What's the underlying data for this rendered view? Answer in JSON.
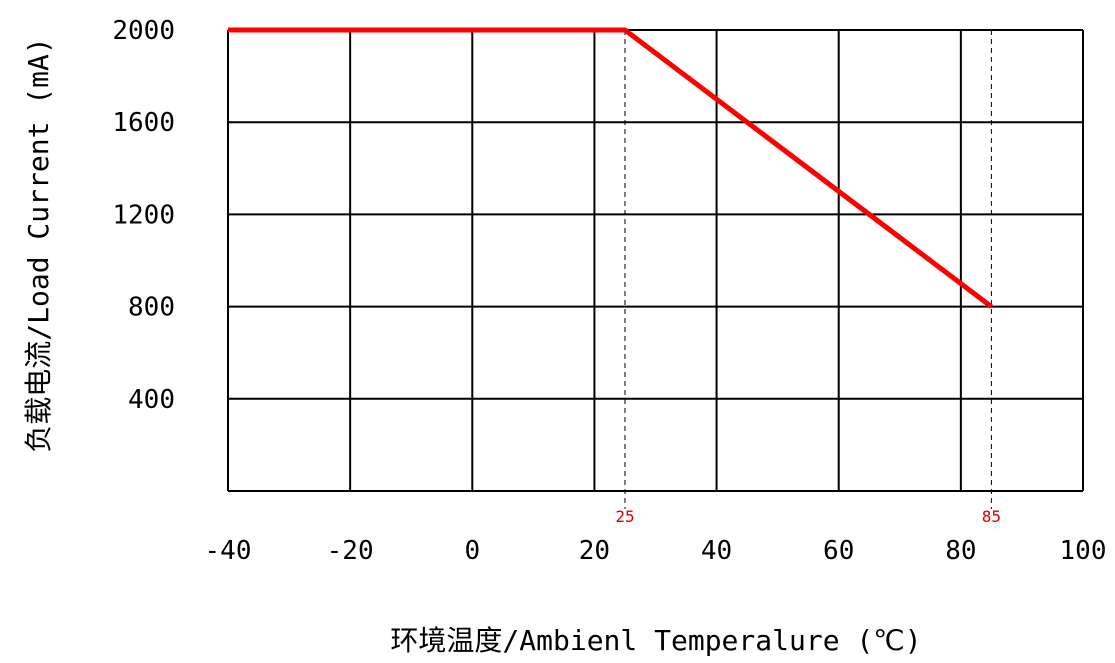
{
  "chart_data": {
    "type": "line",
    "xlabel": "环境温度/Ambienl Temperalure (℃)",
    "ylabel": "负载电流/Load Current (mA)",
    "xlim": [
      -40,
      100
    ],
    "ylim": [
      0,
      2000
    ],
    "x_ticks": [
      "-40",
      "-20",
      "0",
      "20",
      "40",
      "60",
      "80",
      "100"
    ],
    "y_ticks": [
      "400",
      "800",
      "1200",
      "1600",
      "2000"
    ],
    "grid": true,
    "series": [
      {
        "color": "#ff0000",
        "points": [
          [
            -40,
            2000
          ],
          [
            25,
            2000
          ],
          [
            85,
            800
          ]
        ]
      }
    ],
    "annotations": [
      {
        "x": 25,
        "label": "25"
      },
      {
        "x": 85,
        "label": "85"
      }
    ]
  }
}
